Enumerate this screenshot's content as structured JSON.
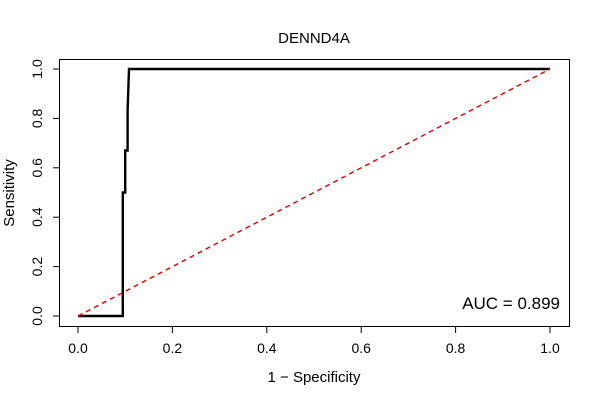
{
  "chart_data": {
    "type": "line",
    "title": "DENND4A",
    "xlabel": "1 − Specificity",
    "ylabel": "Sensitivity",
    "xlim": [
      0.0,
      1.0
    ],
    "ylim": [
      0.0,
      1.0
    ],
    "x_ticks": [
      "0.0",
      "0.2",
      "0.4",
      "0.6",
      "0.8",
      "1.0"
    ],
    "y_ticks": [
      "0.0",
      "0.2",
      "0.4",
      "0.6",
      "0.8",
      "1.0"
    ],
    "grid": false,
    "annotation": "AUC = 0.899",
    "series": [
      {
        "color": "#000000",
        "line_style": "solid",
        "x": [
          0.0,
          0.095,
          0.095,
          0.095,
          0.095,
          0.095,
          0.1,
          0.1,
          0.105,
          0.105,
          0.108,
          1.0
        ],
        "y": [
          0.0,
          0.0,
          0.17,
          0.33,
          0.5,
          0.5,
          0.5,
          0.67,
          0.67,
          0.83,
          1.0,
          1.0
        ]
      },
      {
        "color": "#e00000",
        "line_style": "dashed",
        "x": [
          0.0,
          1.0
        ],
        "y": [
          0.0,
          1.0
        ]
      }
    ]
  }
}
